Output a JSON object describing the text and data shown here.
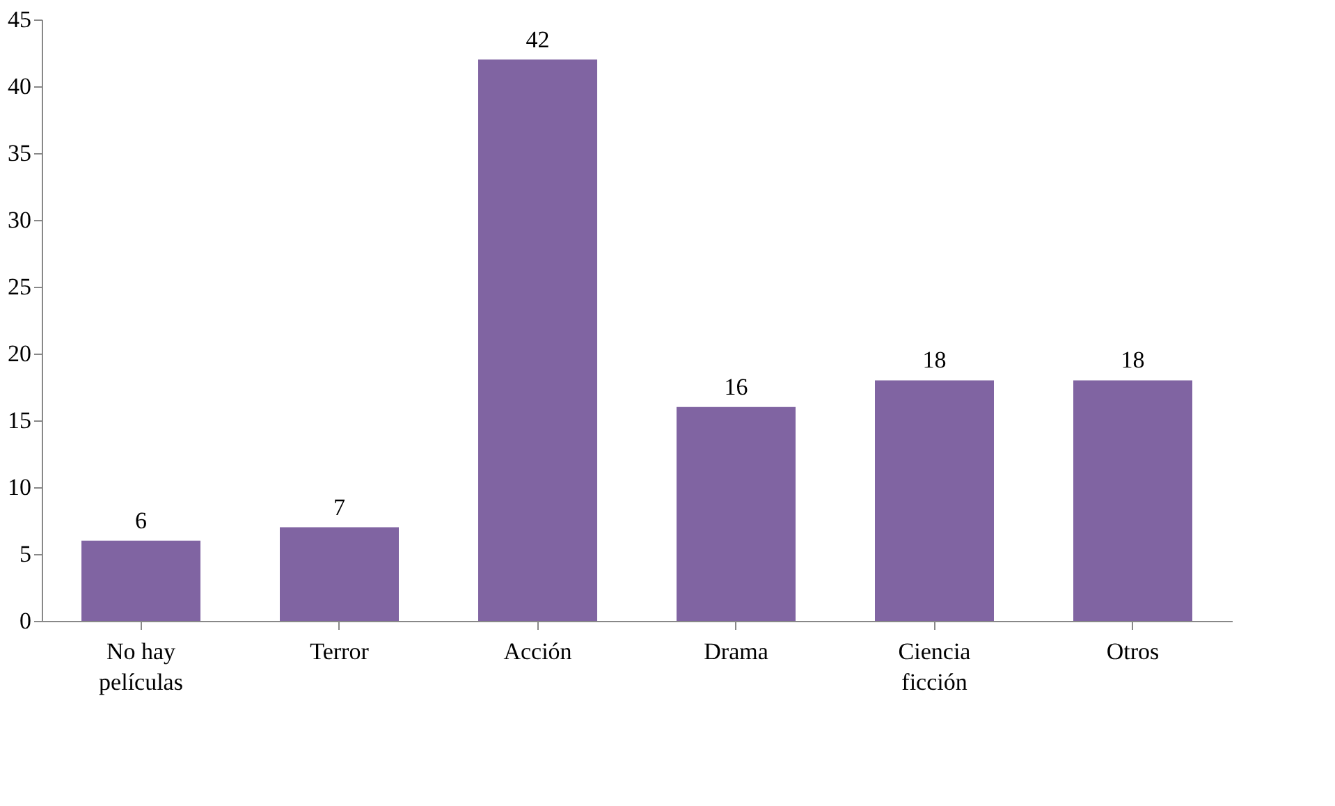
{
  "chart_data": {
    "type": "bar",
    "categories": [
      "No hay películas",
      "Terror",
      "Acción",
      "Drama",
      "Ciencia ficción",
      "Otros"
    ],
    "values": [
      6,
      7,
      42,
      16,
      18,
      18
    ],
    "color": "#8064a2",
    "ylim": [
      0,
      45
    ],
    "yticks": [
      0,
      5,
      10,
      15,
      20,
      25,
      30,
      35,
      40,
      45
    ],
    "grid": false,
    "data_labels": true
  }
}
